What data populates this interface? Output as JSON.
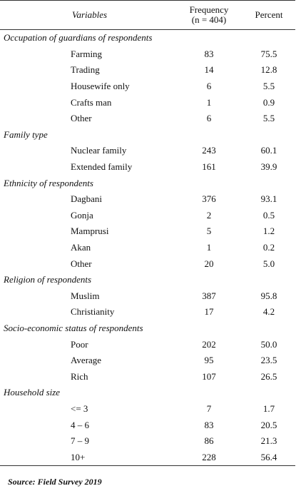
{
  "header": {
    "variables": "Variables",
    "frequency_line1": "Frequency",
    "frequency_line2": "(n = 404)",
    "percent": "Percent"
  },
  "groups": [
    {
      "title": "Occupation of guardians of respondents",
      "rows": [
        {
          "label": "Farming",
          "frequency": "83",
          "percent": "75.5"
        },
        {
          "label": "Trading",
          "frequency": "14",
          "percent": "12.8"
        },
        {
          "label": "Housewife only",
          "frequency": "6",
          "percent": "5.5"
        },
        {
          "label": "Crafts man",
          "frequency": "1",
          "percent": "0.9"
        },
        {
          "label": "Other",
          "frequency": "6",
          "percent": "5.5"
        }
      ]
    },
    {
      "title": "Family type",
      "rows": [
        {
          "label": "Nuclear family",
          "frequency": "243",
          "percent": "60.1"
        },
        {
          "label": "Extended family",
          "frequency": "161",
          "percent": "39.9"
        }
      ]
    },
    {
      "title": "Ethnicity of respondents",
      "rows": [
        {
          "label": "Dagbani",
          "frequency": "376",
          "percent": "93.1"
        },
        {
          "label": "Gonja",
          "frequency": "2",
          "percent": "0.5"
        },
        {
          "label": "Mamprusi",
          "frequency": "5",
          "percent": "1.2"
        },
        {
          "label": "Akan",
          "frequency": "1",
          "percent": "0.2"
        },
        {
          "label": "Other",
          "frequency": "20",
          "percent": "5.0"
        }
      ]
    },
    {
      "title": "Religion of respondents",
      "rows": [
        {
          "label": "Muslim",
          "frequency": "387",
          "percent": "95.8"
        },
        {
          "label": "Christianity",
          "frequency": "17",
          "percent": "4.2"
        }
      ]
    },
    {
      "title": "Socio-economic status of respondents",
      "rows": [
        {
          "label": "Poor",
          "frequency": "202",
          "percent": "50.0"
        },
        {
          "label": "Average",
          "frequency": "95",
          "percent": "23.5"
        },
        {
          "label": "Rich",
          "frequency": "107",
          "percent": "26.5"
        }
      ]
    },
    {
      "title": "Household size",
      "rows": [
        {
          "label": "<= 3",
          "frequency": "7",
          "percent": "1.7"
        },
        {
          "label": "4 – 6",
          "frequency": "83",
          "percent": "20.5"
        },
        {
          "label": "7 – 9",
          "frequency": "86",
          "percent": "21.3"
        },
        {
          "label": "10+",
          "frequency": "228",
          "percent": "56.4"
        }
      ]
    }
  ],
  "source": "Source: Field Survey 2019"
}
